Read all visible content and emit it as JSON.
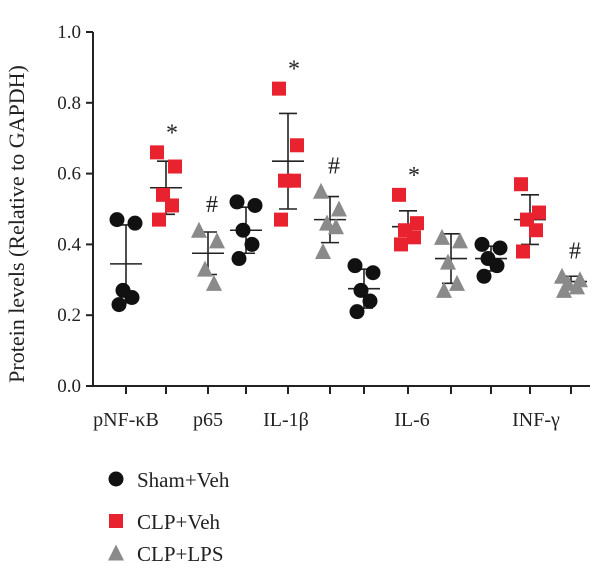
{
  "chart_data": {
    "type": "scatter",
    "ylabel": "Protein levels (Relative to GAPDH)",
    "ylim": [
      0,
      1.0
    ],
    "yticks": [
      "0.0",
      "0.2",
      "0.4",
      "0.6",
      "0.8",
      "1.0"
    ],
    "categories": [
      "pNF-κB",
      "p65",
      "IL-1β",
      "IL-6",
      "INF-γ"
    ],
    "series": [
      {
        "name": "Sham+Veh",
        "color": "#111111",
        "marker": "circle",
        "points": [
          [
            0.47,
            0.46,
            0.27,
            0.25,
            0.23
          ],
          [],
          [
            0.52,
            0.51,
            0.44,
            0.4,
            0.36
          ],
          [
            0.34,
            0.32,
            0.27,
            0.24,
            0.21
          ],
          [
            0.4,
            0.39,
            0.36,
            0.34,
            0.31
          ]
        ],
        "mean": [
          0.345,
          null,
          0.44,
          0.275,
          0.36
        ],
        "sd": [
          0.11,
          null,
          0.065,
          0.055,
          0.035
        ]
      },
      {
        "name": "CLP+Veh",
        "color": "#e8232f",
        "marker": "square",
        "points": [
          [
            0.66,
            0.62,
            0.54,
            0.51,
            0.47
          ],
          [],
          [
            0.84,
            0.68,
            0.58,
            0.58,
            0.47
          ],
          [
            0.54,
            0.46,
            0.44,
            0.42,
            0.4
          ],
          [
            0.57,
            0.49,
            0.47,
            0.44,
            0.38
          ]
        ],
        "mean": [
          0.56,
          null,
          0.635,
          0.45,
          0.47
        ],
        "sd": [
          0.075,
          null,
          0.135,
          0.045,
          0.07
        ]
      },
      {
        "name": "CLP+LPS",
        "color": "#8a8a8a",
        "marker": "triangle",
        "points": [
          [],
          [
            0.44,
            0.41,
            0.33,
            0.29
          ],
          [
            0.55,
            0.5,
            0.46,
            0.45,
            0.38
          ],
          [
            0.42,
            0.41,
            0.35,
            0.29,
            0.27
          ],
          [
            0.31,
            0.3,
            0.29,
            0.28,
            0.27
          ]
        ],
        "mean": [
          null,
          0.375,
          0.47,
          0.36,
          0.295
        ],
        "sd": [
          null,
          0.06,
          0.065,
          0.07,
          0.015
        ]
      }
    ],
    "annotations": [
      {
        "text": "*",
        "category": 0,
        "series": 1
      },
      {
        "text": "#",
        "category": 1,
        "series": 2
      },
      {
        "text": "*",
        "category": 2,
        "series": 1
      },
      {
        "text": "#",
        "category": 2,
        "series": 2
      },
      {
        "text": "*",
        "category": 3,
        "series": 1
      },
      {
        "text": "#",
        "category": 4,
        "series": 2
      }
    ],
    "legend": {
      "placement": "bottom-left",
      "entries": [
        "Sham+Veh",
        "CLP+Veh",
        "CLP+LPS"
      ]
    }
  }
}
